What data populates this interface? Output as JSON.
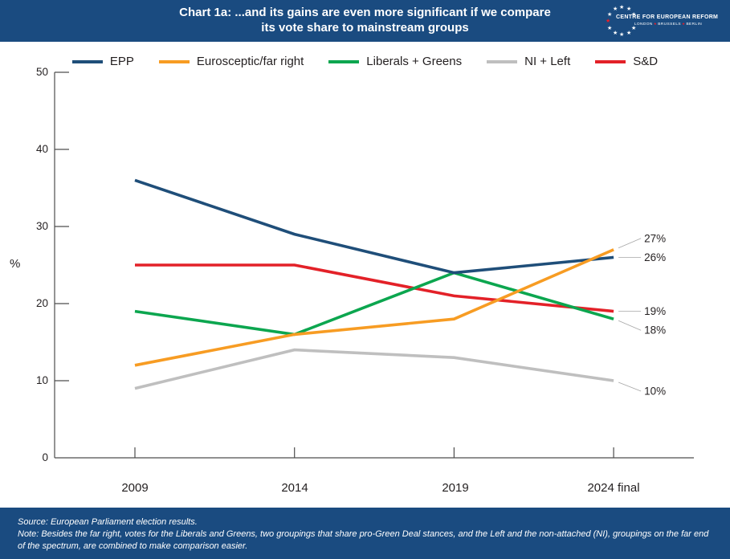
{
  "header": {
    "title_line1": "Chart 1a: ...and its gains are even more significant if we compare",
    "title_line2": "its vote share to mainstream groups",
    "logo": {
      "name_caps": "CENTRE FOR EUROPEAN REFORM",
      "cities": [
        "LONDON",
        "BRUSSELS",
        "BERLIN"
      ],
      "star_glyph": "★"
    }
  },
  "colors": {
    "band_blue": "#1A4B80",
    "epp": "#1F4E79",
    "eurosceptic": "#F79C23",
    "liberals_greens": "#0CA64F",
    "ni_left": "#BFBFBF",
    "sd": "#E32128",
    "leader": "#A6A6A6",
    "axis": "#4D4D4D",
    "text": "#231F20"
  },
  "chart_data": {
    "type": "line",
    "title": "Chart 1a: ...and its gains are even more significant if we compare its vote share to mainstream groups",
    "xlabel": "",
    "ylabel": "%",
    "ylim": [
      0,
      50
    ],
    "yticks": [
      0,
      10,
      20,
      30,
      40,
      50
    ],
    "grid": false,
    "legend_position": "top",
    "categories": [
      "2009",
      "2014",
      "2019",
      "2024 final"
    ],
    "series": [
      {
        "name": "EPP",
        "color_key": "epp",
        "values": [
          36,
          29,
          24,
          26
        ],
        "end_label": "26%"
      },
      {
        "name": "Eurosceptic/far right",
        "color_key": "eurosceptic",
        "values": [
          12,
          16,
          18,
          27
        ],
        "end_label": "27%"
      },
      {
        "name": "Liberals + Greens",
        "color_key": "liberals_greens",
        "values": [
          19,
          16,
          24,
          18
        ],
        "end_label": "18%"
      },
      {
        "name": "NI + Left",
        "color_key": "ni_left",
        "values": [
          9,
          14,
          13,
          10
        ],
        "end_label": "10%"
      },
      {
        "name": "S&D",
        "color_key": "sd",
        "values": [
          25,
          25,
          21,
          19
        ],
        "end_label": "19%"
      }
    ]
  },
  "footer": {
    "source": "Source: European Parliament election results.",
    "note": "Note: Besides the far right, votes for the Liberals and Greens, two groupings that share pro-Green Deal stances, and the Left and the non-attached (NI), groupings on the far end of the spectrum, are combined to make comparison easier."
  }
}
